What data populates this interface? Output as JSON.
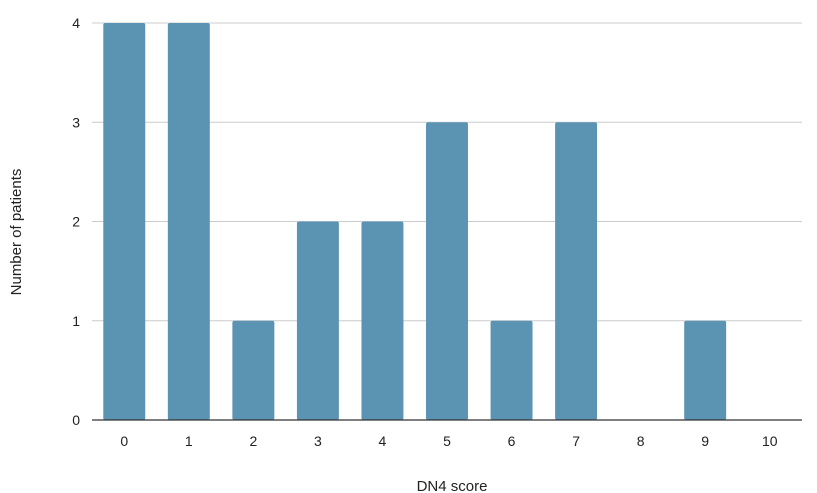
{
  "chart_data": {
    "type": "bar",
    "xlabel": "DN4 score",
    "ylabel": "Number of patients",
    "categories": [
      "0",
      "1",
      "2",
      "3",
      "4",
      "5",
      "6",
      "7",
      "8",
      "9",
      "10"
    ],
    "values": [
      4,
      4,
      1,
      2,
      2,
      3,
      1,
      3,
      0,
      1,
      0
    ],
    "ylim": [
      0,
      4
    ],
    "yticks": [
      "0",
      "1",
      "2",
      "3",
      "4"
    ],
    "grid": true,
    "bar_color": "#5b93b2",
    "grid_color": "#cccccc",
    "axis_color": "#333333"
  }
}
